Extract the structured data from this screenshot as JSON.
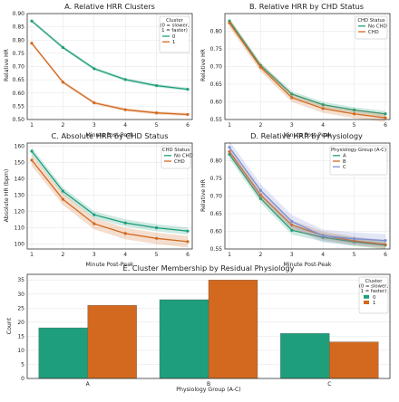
{
  "colors": {
    "teal": "#1f9e7c",
    "orange": "#d2691e",
    "blue": "#7b8fd6",
    "border": "#333333"
  },
  "chart_data": [
    {
      "type": "line",
      "title": "A. Relative HRR Clusters",
      "xlabel": "Minute Post-Peak",
      "ylabel": "Relative HR",
      "xlim": [
        1,
        6
      ],
      "ylim": [
        0.5,
        0.9
      ],
      "x": [
        1,
        2,
        3,
        4,
        5,
        6
      ],
      "yticks": [
        "0.50",
        "0.55",
        "0.60",
        "0.65",
        "0.70",
        "0.75",
        "0.80",
        "0.85",
        "0.90"
      ],
      "legend": {
        "title": "Cluster\n(0 = slower,\n1 = faster)",
        "position": "top-right"
      },
      "series": [
        {
          "name": "0",
          "color": "#1f9e7c",
          "values": [
            0.872,
            0.772,
            0.692,
            0.651,
            0.628,
            0.614
          ],
          "band": 0.006
        },
        {
          "name": "1",
          "color": "#d2691e",
          "values": [
            0.788,
            0.641,
            0.563,
            0.537,
            0.525,
            0.519
          ],
          "band": 0.006
        }
      ]
    },
    {
      "type": "line",
      "title": "B. Relative HRR by CHD Status",
      "xlabel": "Minute Post-Peak",
      "ylabel": "Relative HR",
      "xlim": [
        1,
        6
      ],
      "ylim": [
        0.55,
        0.85
      ],
      "x": [
        1,
        2,
        3,
        4,
        5,
        6
      ],
      "yticks": [
        "0.55",
        "0.60",
        "0.65",
        "0.70",
        "0.75",
        "0.80"
      ],
      "legend": {
        "title": "CHD Status",
        "position": "top-right"
      },
      "series": [
        {
          "name": "No CHD",
          "color": "#1f9e7c",
          "values": [
            0.829,
            0.703,
            0.622,
            0.592,
            0.577,
            0.566
          ],
          "band": 0.008
        },
        {
          "name": "CHD",
          "color": "#d2691e",
          "values": [
            0.823,
            0.698,
            0.612,
            0.581,
            0.566,
            0.555
          ],
          "band": 0.012
        }
      ]
    },
    {
      "type": "line",
      "title": "C. Absolute HRR by CHD Status",
      "xlabel": "Minute Post-Peak",
      "ylabel": "Absolute HR (bpm)",
      "xlim": [
        1,
        6
      ],
      "ylim": [
        97,
        162
      ],
      "x": [
        1,
        2,
        3,
        4,
        5,
        6
      ],
      "yticks": [
        "100",
        "110",
        "120",
        "130",
        "140",
        "150",
        "160"
      ],
      "legend": {
        "title": "CHD Status",
        "position": "top-right"
      },
      "series": [
        {
          "name": "No CHD",
          "color": "#1f9e7c",
          "values": [
            157,
            132.5,
            118,
            113,
            110,
            108
          ],
          "band": 2.2
        },
        {
          "name": "CHD",
          "color": "#d2691e",
          "values": [
            151.5,
            127.5,
            112.5,
            106.5,
            103.5,
            101.5
          ],
          "band": 3.5
        }
      ]
    },
    {
      "type": "line",
      "title": "D. Relative HRR by Physiology",
      "xlabel": "Minute Post-Peak",
      "ylabel": "Relative HR",
      "xlim": [
        1,
        6
      ],
      "ylim": [
        0.55,
        0.85
      ],
      "x": [
        1,
        2,
        3,
        4,
        5,
        6
      ],
      "yticks": [
        "0.55",
        "0.60",
        "0.65",
        "0.70",
        "0.75",
        "0.80"
      ],
      "legend": {
        "title": "Physiology Group (A-C)",
        "position": "top-right"
      },
      "series": [
        {
          "name": "A",
          "color": "#1f9e7c",
          "values": [
            0.818,
            0.693,
            0.603,
            0.583,
            0.57,
            0.561
          ],
          "band": 0.012
        },
        {
          "name": "B",
          "color": "#d2691e",
          "values": [
            0.826,
            0.703,
            0.618,
            0.588,
            0.573,
            0.563
          ],
          "band": 0.012
        },
        {
          "name": "C",
          "color": "#7b8fd6",
          "values": [
            0.838,
            0.716,
            0.628,
            0.587,
            0.579,
            0.574
          ],
          "band": 0.018
        }
      ]
    },
    {
      "type": "bar",
      "title": "E. Cluster Membership by Residual Physiology",
      "xlabel": "Physiology Group (A-C)",
      "ylabel": "Count",
      "ylim": [
        0,
        37
      ],
      "categories": [
        "A",
        "B",
        "C"
      ],
      "yticks": [
        "0",
        "5",
        "10",
        "15",
        "20",
        "25",
        "30",
        "35"
      ],
      "legend": {
        "title": "Cluster\n(0 = slower,\n1 = faster)",
        "position": "top-right"
      },
      "series": [
        {
          "name": "0",
          "color": "#1f9e7c",
          "values": [
            18,
            28,
            16
          ]
        },
        {
          "name": "1",
          "color": "#d2691e",
          "values": [
            26,
            35,
            13
          ]
        }
      ]
    }
  ]
}
